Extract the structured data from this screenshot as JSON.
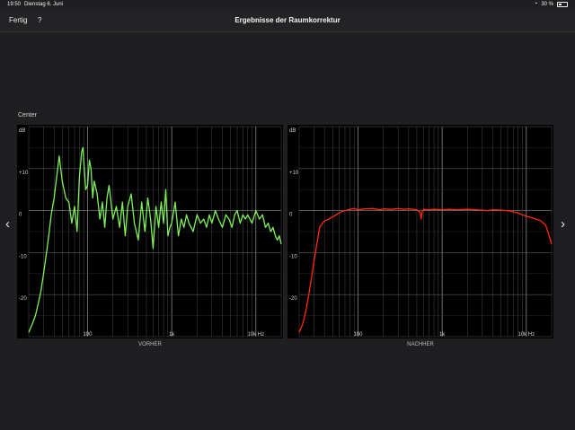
{
  "status_bar": {
    "time": "19:50",
    "date": "Dienstag 6. Juni",
    "battery": "30 %",
    "battery_level": 0.3,
    "wifi_icon": "wifi-icon"
  },
  "nav": {
    "done_label": "Fertig",
    "help_label": "?",
    "title": "Ergebnisse der Raumkorrektur"
  },
  "section_label": "Center",
  "nav_arrows": {
    "prev": "‹",
    "next": "›"
  },
  "chart_data": [
    {
      "type": "line",
      "xlabel": "VORHER",
      "x_scale": "log",
      "xlim": [
        20,
        20000
      ],
      "ylim": [
        -30,
        20
      ],
      "y_ticks": [
        {
          "v": 20,
          "label": "dB"
        },
        {
          "v": 10,
          "label": "+10"
        },
        {
          "v": 0,
          "label": "0"
        },
        {
          "v": -10,
          "label": "-10"
        },
        {
          "v": -20,
          "label": "-20"
        }
      ],
      "x_ticks": [
        {
          "v": 100,
          "label": "100"
        },
        {
          "v": 1000,
          "label": "1k"
        },
        {
          "v": 10000,
          "label": "10k Hz"
        }
      ],
      "grid": true,
      "series": [
        {
          "color": "#7df05a",
          "x": [
            20,
            22,
            24,
            26,
            28,
            30,
            32,
            33,
            35,
            37,
            40,
            43,
            46,
            50,
            55,
            60,
            65,
            70,
            75,
            80,
            85,
            88,
            90,
            95,
            100,
            105,
            110,
            115,
            120,
            130,
            140,
            150,
            160,
            170,
            180,
            200,
            220,
            240,
            260,
            280,
            300,
            330,
            360,
            400,
            440,
            480,
            520,
            560,
            600,
            650,
            700,
            750,
            800,
            850,
            900,
            950,
            1000,
            1100,
            1200,
            1300,
            1400,
            1500,
            1600,
            1800,
            2000,
            2200,
            2400,
            2600,
            2800,
            3000,
            3300,
            3600,
            4000,
            4400,
            4800,
            5200,
            5600,
            6000,
            6500,
            7000,
            7500,
            8000,
            9000,
            10000,
            11000,
            12000,
            13000,
            14000,
            15000,
            16000,
            17000,
            18000,
            19000,
            20000
          ],
          "values": [
            -29,
            -27,
            -25,
            -22,
            -19,
            -15,
            -11,
            -9,
            -5,
            -1,
            3,
            8,
            13,
            7,
            3,
            2,
            -3,
            1,
            -5,
            8,
            14,
            15,
            12,
            5,
            6,
            12,
            10,
            3,
            7,
            4,
            -2,
            2,
            -4,
            3,
            6,
            -2,
            1,
            -4,
            2,
            -6,
            1,
            4,
            -3,
            -7,
            2,
            -5,
            3,
            -2,
            -9,
            1,
            -4,
            2,
            -3,
            5,
            -6,
            -4,
            -3,
            2,
            -6,
            -2,
            -4,
            -1,
            -3,
            -5,
            -1,
            -3,
            -2,
            -4,
            -1,
            -3,
            0,
            -2,
            -4,
            -1,
            -2,
            -4,
            -1,
            0,
            -3,
            -1,
            -2,
            -1,
            -3,
            0,
            -2,
            -1,
            -4,
            -3,
            -5,
            -4,
            -6,
            -7,
            -6,
            -8
          ]
        }
      ]
    },
    {
      "type": "line",
      "xlabel": "NACHHER",
      "x_scale": "log",
      "xlim": [
        20,
        20000
      ],
      "ylim": [
        -30,
        20
      ],
      "y_ticks": [
        {
          "v": 20,
          "label": "dB"
        },
        {
          "v": 10,
          "label": "+10"
        },
        {
          "v": 0,
          "label": "0"
        },
        {
          "v": -10,
          "label": "-10"
        },
        {
          "v": -20,
          "label": "-20"
        }
      ],
      "x_ticks": [
        {
          "v": 100,
          "label": "100"
        },
        {
          "v": 1000,
          "label": "1k"
        },
        {
          "v": 10000,
          "label": "10k Hz"
        }
      ],
      "grid": true,
      "series": [
        {
          "color": "#ff2a10",
          "x": [
            20,
            22,
            24,
            26,
            28,
            30,
            33,
            35,
            38,
            40,
            45,
            50,
            55,
            60,
            70,
            80,
            90,
            100,
            120,
            150,
            180,
            200,
            250,
            300,
            350,
            400,
            450,
            500,
            550,
            560,
            580,
            600,
            700,
            800,
            1000,
            1200,
            1500,
            2000,
            2500,
            3000,
            3500,
            4000,
            5000,
            6000,
            7000,
            8000,
            9000,
            10000,
            12000,
            14000,
            15000,
            16000,
            17000,
            18000,
            19000,
            20000
          ],
          "values": [
            -29,
            -27,
            -24,
            -20,
            -16,
            -12,
            -7,
            -4,
            -3,
            -2.5,
            -2,
            -1.5,
            -1,
            -0.5,
            0,
            0.3,
            0.5,
            0.2,
            0.4,
            0.5,
            0.2,
            0.4,
            0.3,
            0.5,
            0.3,
            0.4,
            0.3,
            0.2,
            -0.5,
            -2,
            -0.3,
            0.3,
            0.2,
            0.3,
            0.2,
            0.3,
            0.2,
            0.3,
            0.2,
            0.1,
            0,
            0.2,
            0.1,
            0,
            -0.3,
            -0.6,
            -1,
            -1.3,
            -1.8,
            -2.2,
            -2.5,
            -3,
            -3.5,
            -5,
            -6.5,
            -8
          ]
        }
      ]
    }
  ]
}
